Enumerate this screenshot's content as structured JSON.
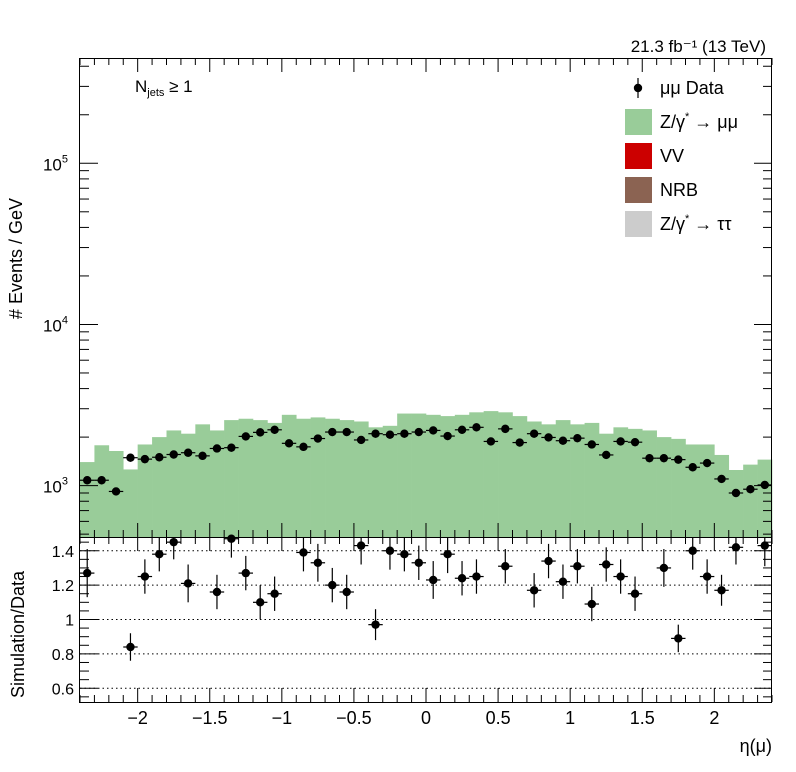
{
  "chart_data": [
    {
      "type": "bar",
      "role": "main",
      "title": "",
      "lumi_label": "21.3 fb⁻¹ (13 TeV)",
      "category_label": "N_jets ≥ 1",
      "category_main": "N",
      "category_sub": "jets",
      "category_rest": " ≥ 1",
      "ylabel": "# Events / GeV",
      "yscale": "log",
      "ylim": [
        480,
        450000
      ],
      "xlim": [
        -2.4,
        2.4
      ],
      "bin_edges": [
        -2.4,
        -2.3,
        -2.2,
        -2.1,
        -2.0,
        -1.9,
        -1.8,
        -1.7,
        -1.6,
        -1.5,
        -1.4,
        -1.3,
        -1.2,
        -1.1,
        -1.0,
        -0.9,
        -0.8,
        -0.7,
        -0.6,
        -0.5,
        -0.4,
        -0.3,
        -0.2,
        -0.1,
        0.0,
        0.1,
        0.2,
        0.3,
        0.4,
        0.5,
        0.6,
        0.7,
        0.8,
        0.9,
        1.0,
        1.1,
        1.2,
        1.3,
        1.4,
        1.5,
        1.6,
        1.7,
        1.8,
        1.9,
        2.0,
        2.1,
        2.2,
        2.3,
        2.4
      ],
      "yticks": [
        {
          "value": 1000,
          "mantissa": "10",
          "exponent": "3"
        },
        {
          "value": 10000,
          "mantissa": "10",
          "exponent": "4"
        },
        {
          "value": 100000,
          "mantissa": "10",
          "exponent": "5"
        }
      ],
      "legend_position": "top-right",
      "legend": [
        {
          "label": "μμ Data",
          "kind": "marker"
        },
        {
          "label": "Z/γ* → μμ",
          "main": "Z/γ",
          "sup": "*",
          "rest": " → μμ",
          "kind": "box",
          "color": "#99cc99"
        },
        {
          "label": "VV",
          "kind": "box",
          "color": "#cc0000"
        },
        {
          "label": "NRB",
          "kind": "box",
          "color": "#8b6352"
        },
        {
          "label": "Z/γ* → ττ",
          "main": "Z/γ",
          "sup": "*",
          "rest": " → ττ",
          "kind": "box",
          "color": "#cccccc"
        }
      ],
      "series": [
        {
          "name": "Z/γ* → μμ",
          "style": "filled-histogram",
          "color": "#99cc99",
          "values": [
            1400,
            1780,
            1640,
            1260,
            1800,
            2000,
            2200,
            2100,
            2400,
            2200,
            2550,
            2600,
            2550,
            2450,
            2750,
            2600,
            2650,
            2600,
            2550,
            2500,
            2300,
            2350,
            2800,
            2800,
            2750,
            2700,
            2750,
            2850,
            2900,
            2850,
            2700,
            2500,
            2400,
            2550,
            2400,
            2450,
            2100,
            2300,
            2250,
            2200,
            2000,
            1950,
            1800,
            1800,
            1550,
            1250,
            1350,
            1450
          ]
        },
        {
          "name": "μμ Data",
          "style": "markers",
          "color": "#000000",
          "values": [
            1080,
            1080,
            920,
            1490,
            1460,
            1500,
            1560,
            1600,
            1530,
            1700,
            1720,
            2020,
            2140,
            2220,
            1830,
            1740,
            1960,
            2150,
            2150,
            1920,
            2100,
            2070,
            2100,
            2150,
            2200,
            2030,
            2220,
            2300,
            1880,
            2250,
            1850,
            2100,
            1990,
            1900,
            1970,
            1800,
            1550,
            1880,
            1860,
            1480,
            1480,
            1450,
            1300,
            1380,
            1100,
            900,
            950,
            1010
          ]
        }
      ]
    },
    {
      "type": "scatter",
      "role": "ratio",
      "ylabel": "Simulation/Data",
      "xlabel": "η(μ)",
      "xlim": [
        -2.4,
        2.4
      ],
      "ylim": [
        0.52,
        1.48
      ],
      "xticks": [
        -2,
        -1.5,
        -1,
        -0.5,
        0,
        0.5,
        1,
        1.5,
        2
      ],
      "xtick_labels": [
        "−2",
        "−1.5",
        "−1",
        "−0.5",
        "0",
        "0.5",
        "1",
        "1.5",
        "2"
      ],
      "yticks": [
        0.6,
        0.8,
        1.0,
        1.2,
        1.4
      ],
      "ytick_labels": [
        "0.6",
        "0.8",
        "1",
        "1.2",
        "1.4"
      ],
      "grid": true,
      "values": [
        1.27,
        null,
        null,
        0.84,
        1.25,
        1.38,
        1.45,
        1.21,
        null,
        1.16,
        1.47,
        1.27,
        1.1,
        1.15,
        null,
        1.39,
        1.33,
        1.2,
        1.16,
        1.43,
        0.97,
        1.4,
        1.38,
        1.33,
        1.23,
        1.38,
        1.24,
        1.25,
        null,
        1.31,
        null,
        1.17,
        1.34,
        1.22,
        1.31,
        1.09,
        1.32,
        1.25,
        1.15,
        null,
        1.3,
        0.89,
        1.4,
        1.25,
        1.17,
        1.42,
        null,
        1.43
      ],
      "errors": [
        0.14,
        null,
        null,
        0.08,
        0.1,
        0.1,
        0.1,
        0.11,
        null,
        0.1,
        0.11,
        0.1,
        0.1,
        0.1,
        null,
        0.11,
        0.11,
        0.1,
        0.1,
        0.11,
        0.09,
        0.11,
        0.1,
        0.1,
        0.11,
        0.11,
        0.1,
        0.1,
        null,
        0.1,
        null,
        0.1,
        0.1,
        0.1,
        0.1,
        0.1,
        0.1,
        0.1,
        0.1,
        null,
        0.11,
        0.08,
        0.11,
        0.1,
        0.09,
        0.1,
        null,
        0.12
      ]
    }
  ]
}
